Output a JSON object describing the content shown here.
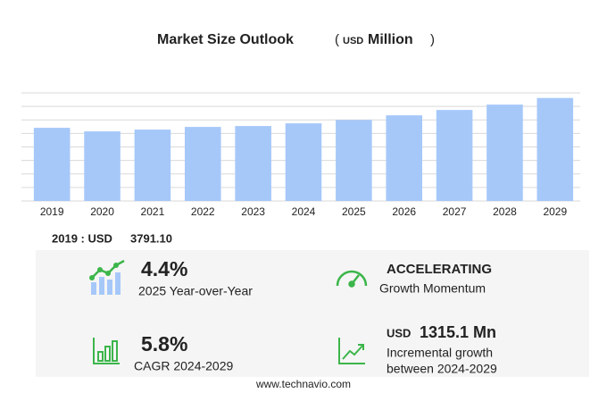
{
  "chart_data": {
    "type": "bar",
    "title": "Market Size Outlook",
    "unit_open": "(",
    "unit_currency": "USD",
    "unit_name": "Million",
    "unit_close": ")",
    "categories": [
      "2019",
      "2020",
      "2021",
      "2022",
      "2023",
      "2024",
      "2025",
      "2026",
      "2027",
      "2028",
      "2029"
    ],
    "values": [
      3791.1,
      3606,
      3698,
      3837,
      3883,
      4022,
      4199,
      4438,
      4715,
      4993,
      5337
    ],
    "color": "#a6c8f9",
    "ylim": [
      0,
      5600
    ],
    "yticks": [
      0,
      700,
      1400,
      2100,
      2800,
      3500,
      4200,
      4900,
      5600
    ],
    "grid": true
  },
  "summary": {
    "base_label": "2019 : USD",
    "base_value": "3791.10",
    "yoy_value": "4.4%",
    "yoy_label": "2025 Year-over-Year",
    "momentum_value": "ACCELERATING",
    "momentum_label": "Growth Momentum",
    "cagr_value": "5.8%",
    "cagr_label": "CAGR 2024-2029",
    "incr_currency": "USD",
    "incr_value": "1315.1 Mn",
    "incr_label_1": "Incremental growth",
    "incr_label_2": "between 2024-2029"
  },
  "footer": "www.technavio.com"
}
